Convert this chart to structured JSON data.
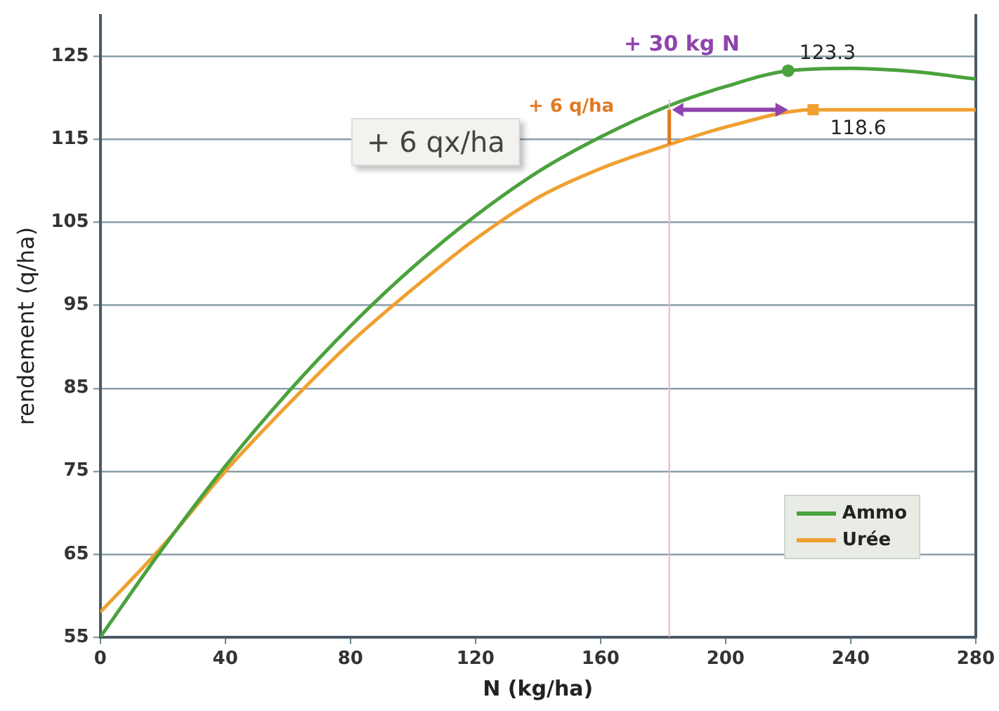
{
  "chart_data": {
    "type": "line",
    "xlabel": "N (kg/ha)",
    "ylabel": "rendement (q/ha)",
    "xlim": [
      0,
      280
    ],
    "xticks": [
      0,
      40,
      80,
      120,
      160,
      200,
      240,
      280
    ],
    "ylim": [
      55,
      130
    ],
    "yticks": [
      55,
      65,
      75,
      85,
      95,
      105,
      115,
      125
    ],
    "grid": "y",
    "legend": "bottom right",
    "marker": "none",
    "line_style": "solid",
    "series": [
      {
        "name": "Ammo",
        "color": "#4aa23c",
        "x": [
          0,
          20,
          40,
          60,
          80,
          100,
          120,
          140,
          160,
          182,
          200,
          220,
          240,
          260,
          280
        ],
        "values": [
          55,
          65.7,
          75.6,
          84.5,
          92.5,
          99.6,
          105.8,
          111.1,
          115.3,
          119.1,
          121.4,
          123.3,
          123.6,
          123.2,
          122.3
        ]
      },
      {
        "name": "Urée",
        "color": "#f0a030",
        "x": [
          0,
          20,
          40,
          60,
          80,
          100,
          120,
          140,
          160,
          182,
          200,
          228,
          280
        ],
        "values": [
          58,
          66,
          75,
          83,
          90.5,
          97,
          103,
          108,
          111.5,
          114.4,
          116.5,
          118.6,
          118.6
        ]
      }
    ],
    "ref_lines": [
      {
        "axis": "x",
        "value": 182,
        "color": "#e8b4c8"
      }
    ],
    "annotations": [
      "+ 30 kg N",
      {
        "text": "123.3",
        "x": 220,
        "y": 123.3
      },
      "+ 6 q/ha",
      {
        "text": "118.6",
        "x": 228,
        "y": 118.6
      },
      "+ 6 qx/ha"
    ]
  }
}
